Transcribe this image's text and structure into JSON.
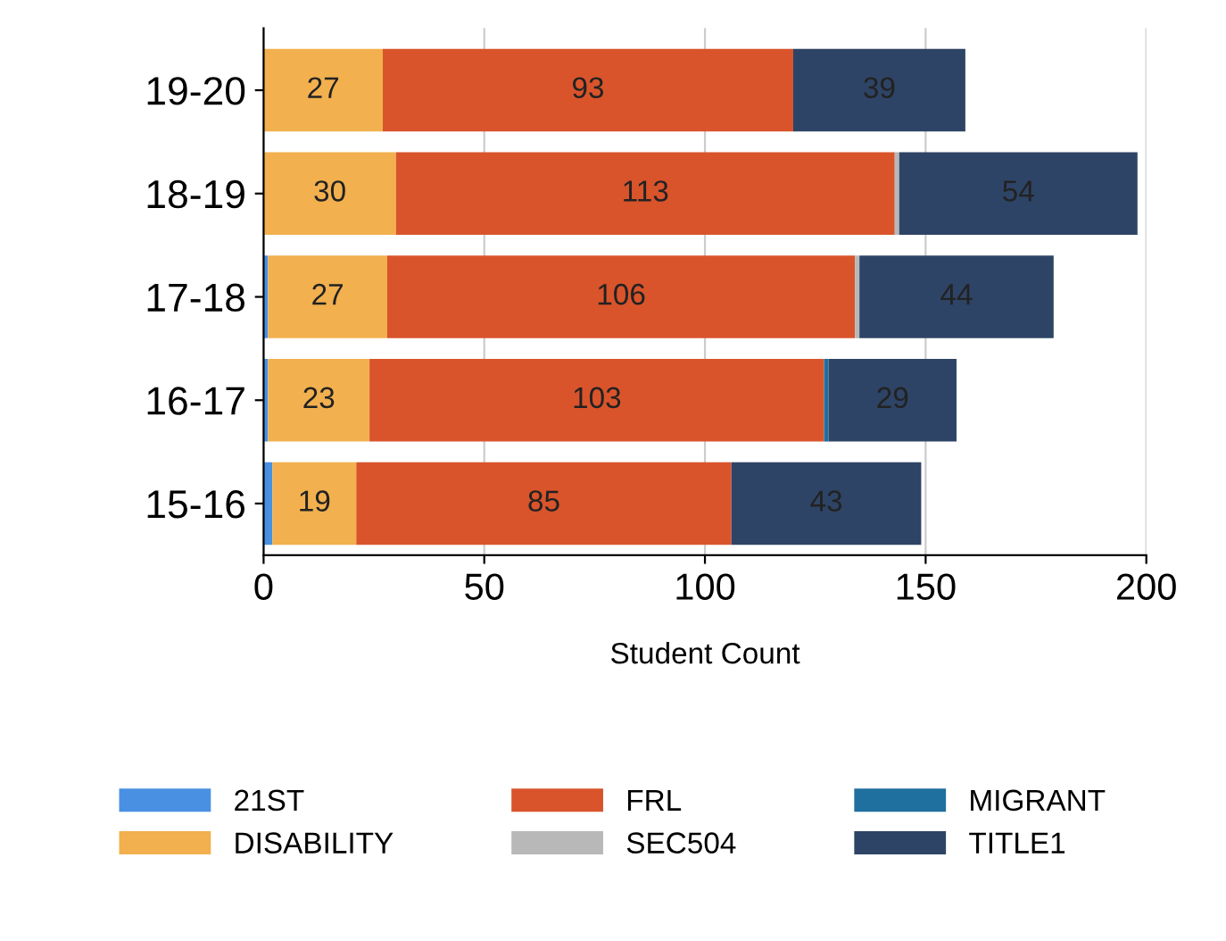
{
  "chart_data": {
    "type": "bar",
    "orientation": "horizontal",
    "stacked": true,
    "xlabel": "Student Count",
    "categories": [
      "19-20",
      "18-19",
      "17-18",
      "16-17",
      "15-16"
    ],
    "series": [
      {
        "name": "21ST",
        "color": "#4a90e2",
        "values": [
          null,
          null,
          1,
          1,
          2
        ],
        "value_labels": [
          null,
          null,
          null,
          null,
          null
        ]
      },
      {
        "name": "DISABILITY",
        "color": "#f2b04e",
        "values": [
          27,
          30,
          27,
          23,
          19
        ],
        "value_labels": [
          "27",
          "30",
          "27",
          "23",
          "19"
        ]
      },
      {
        "name": "FRL",
        "color": "#d9542b",
        "values": [
          93,
          113,
          106,
          103,
          85
        ],
        "value_labels": [
          "93",
          "113",
          "106",
          "103",
          "85"
        ]
      },
      {
        "name": "SEC504",
        "color": "#b8b8b8",
        "values": [
          null,
          1,
          1,
          null,
          null
        ],
        "value_labels": [
          null,
          null,
          null,
          null,
          null
        ]
      },
      {
        "name": "MIGRANT",
        "color": "#1f6f9f",
        "values": [
          null,
          null,
          null,
          1,
          null
        ],
        "value_labels": [
          null,
          null,
          null,
          null,
          null
        ]
      },
      {
        "name": "TITLE1",
        "color": "#2e4466",
        "values": [
          39,
          54,
          44,
          29,
          43
        ],
        "value_labels": [
          "39",
          "54",
          "44",
          "29",
          "43"
        ]
      }
    ],
    "xlim": [
      0,
      200
    ],
    "xticks": [
      0,
      50,
      100,
      150,
      200
    ],
    "grid": "x",
    "legend": "bottom"
  }
}
